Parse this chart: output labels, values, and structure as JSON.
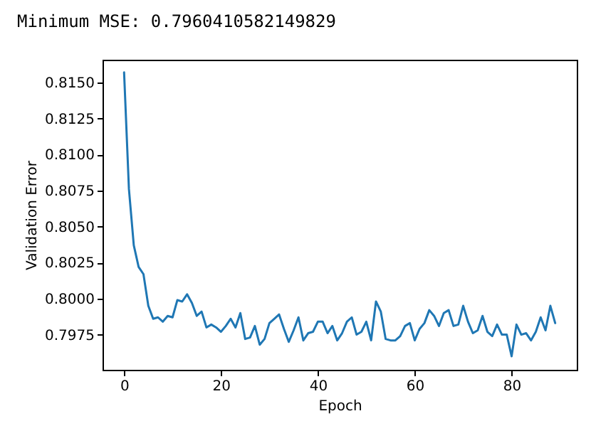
{
  "chart_data": {
    "type": "line",
    "title": "Minimum MSE:  0.7960410582149829",
    "xlabel": "Epoch",
    "ylabel": "Validation Error",
    "grid": false,
    "xlim": [
      -4.45,
      93.45
    ],
    "ylim": [
      0.79506,
      0.81658
    ],
    "xticks": [
      0,
      20,
      40,
      60,
      80
    ],
    "yticks": [
      {
        "value": 0.7975,
        "label": "0.7975"
      },
      {
        "value": 0.8,
        "label": "0.8000"
      },
      {
        "value": 0.8025,
        "label": "0.8025"
      },
      {
        "value": 0.805,
        "label": "0.8050"
      },
      {
        "value": 0.8075,
        "label": "0.8075"
      },
      {
        "value": 0.81,
        "label": "0.8100"
      },
      {
        "value": 0.8125,
        "label": "0.8125"
      },
      {
        "value": 0.815,
        "label": "0.8150"
      }
    ],
    "x": [
      0,
      1,
      2,
      3,
      4,
      5,
      6,
      7,
      8,
      9,
      10,
      11,
      12,
      13,
      14,
      15,
      16,
      17,
      18,
      19,
      20,
      21,
      22,
      23,
      24,
      25,
      26,
      27,
      28,
      29,
      30,
      31,
      32,
      33,
      34,
      35,
      36,
      37,
      38,
      39,
      40,
      41,
      42,
      43,
      44,
      45,
      46,
      47,
      48,
      49,
      50,
      51,
      52,
      53,
      54,
      55,
      56,
      57,
      58,
      59,
      60,
      61,
      62,
      63,
      64,
      65,
      66,
      67,
      68,
      69,
      70,
      71,
      72,
      73,
      74,
      75,
      76,
      77,
      78,
      79,
      80,
      81,
      82,
      83,
      84,
      85,
      86,
      87,
      88,
      89
    ],
    "series": [
      {
        "color": "#1f77b4",
        "values": [
          0.8157,
          0.8076,
          0.8037,
          0.8022,
          0.8017,
          0.7995,
          0.7986,
          0.7987,
          0.7984,
          0.7988,
          0.7987,
          0.7999,
          0.7998,
          0.8003,
          0.7997,
          0.7988,
          0.7991,
          0.798,
          0.7982,
          0.798,
          0.7977,
          0.7981,
          0.7986,
          0.798,
          0.799,
          0.7972,
          0.7973,
          0.7981,
          0.7968,
          0.7972,
          0.7983,
          0.7986,
          0.7989,
          0.7979,
          0.797,
          0.7978,
          0.7987,
          0.7971,
          0.7976,
          0.7977,
          0.7984,
          0.7984,
          0.7976,
          0.7981,
          0.7971,
          0.7976,
          0.7984,
          0.7987,
          0.7975,
          0.7977,
          0.7984,
          0.7971,
          0.7998,
          0.7991,
          0.7972,
          0.7971,
          0.7971,
          0.7974,
          0.7981,
          0.7983,
          0.7971,
          0.7979,
          0.7983,
          0.7992,
          0.7988,
          0.7981,
          0.799,
          0.7992,
          0.7981,
          0.7982,
          0.7995,
          0.7984,
          0.7976,
          0.7978,
          0.7988,
          0.7977,
          0.7974,
          0.7982,
          0.7975,
          0.7975,
          0.796,
          0.7982,
          0.7975,
          0.7976,
          0.7971,
          0.7977,
          0.7987,
          0.7978,
          0.7995,
          0.7983
        ]
      }
    ]
  }
}
